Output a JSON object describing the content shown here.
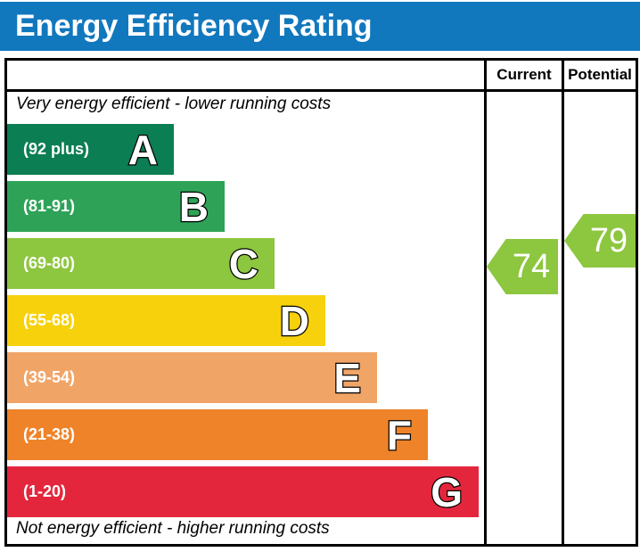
{
  "title": "Energy Efficiency Rating",
  "columns": {
    "current": "Current",
    "potential": "Potential"
  },
  "top_caption": "Very energy efficient - lower running costs",
  "bottom_caption": "Not energy efficient - higher running costs",
  "bands": [
    {
      "letter": "A",
      "range": "(92 plus)",
      "color": "#0b7e54"
    },
    {
      "letter": "B",
      "range": "(81-91)",
      "color": "#2ea358"
    },
    {
      "letter": "C",
      "range": "(69-80)",
      "color": "#8dc63f"
    },
    {
      "letter": "D",
      "range": "(55-68)",
      "color": "#f7d10b"
    },
    {
      "letter": "E",
      "range": "(39-54)",
      "color": "#f0a567"
    },
    {
      "letter": "F",
      "range": "(21-38)",
      "color": "#ee8329"
    },
    {
      "letter": "G",
      "range": "(1-20)",
      "color": "#e4263d"
    }
  ],
  "ratings": {
    "current": {
      "value": "74",
      "color": "#8dc63f"
    },
    "potential": {
      "value": "79",
      "color": "#8dc63f"
    }
  },
  "header_color": "#1278be",
  "chart_data": {
    "type": "bar",
    "title": "Energy Efficiency Rating",
    "categories": [
      "A",
      "B",
      "C",
      "D",
      "E",
      "F",
      "G"
    ],
    "band_ranges": [
      "92 plus",
      "81-91",
      "69-80",
      "55-68",
      "39-54",
      "21-38",
      "1-20"
    ],
    "band_colors": [
      "#0b7e54",
      "#2ea358",
      "#8dc63f",
      "#f7d10b",
      "#f0a567",
      "#ee8329",
      "#e4263d"
    ],
    "bar_relative_widths": [
      187,
      244,
      300,
      357,
      415,
      472,
      529
    ],
    "series": [
      {
        "name": "Current",
        "values": [
          74
        ]
      },
      {
        "name": "Potential",
        "values": [
          79
        ]
      }
    ],
    "annotations": [
      "Very energy efficient - lower running costs",
      "Not energy efficient - higher running costs"
    ],
    "legend_position": "top-right-columns",
    "grid": false
  }
}
